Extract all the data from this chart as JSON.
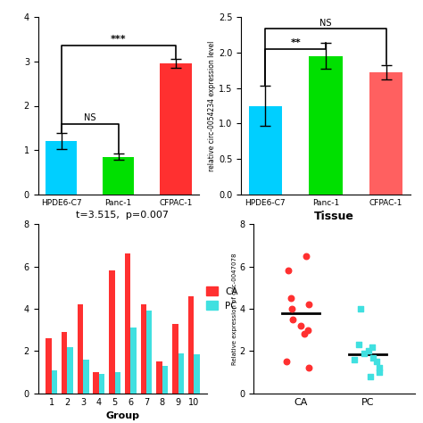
{
  "panel_tl": {
    "categories": [
      "HPDE6-C7",
      "Panc-1",
      "CFPAC-1"
    ],
    "values": [
      1.2,
      0.85,
      2.95
    ],
    "errors": [
      0.18,
      0.07,
      0.1
    ],
    "colors": [
      "#00CFFF",
      "#00E000",
      "#FF3030"
    ],
    "ylim": [
      0,
      4
    ],
    "yticks": [
      0,
      1,
      2,
      3,
      4
    ]
  },
  "panel_tr": {
    "categories": [
      "HPDE6-C7",
      "Panc-1",
      "CFPAC-1"
    ],
    "values": [
      1.25,
      1.95,
      1.72
    ],
    "errors": [
      0.28,
      0.18,
      0.1
    ],
    "colors": [
      "#00CFFF",
      "#00E000",
      "#FF6060"
    ],
    "ylabel": "relative circ-0054234 expression level",
    "ylim": [
      0,
      2.5
    ],
    "yticks": [
      0.0,
      0.5,
      1.0,
      1.5,
      2.0,
      2.5
    ]
  },
  "panel_bl": {
    "title": "t=3.515,  p=0.007",
    "groups": [
      1,
      2,
      3,
      4,
      5,
      6,
      7,
      8,
      9,
      10
    ],
    "ca_values": [
      2.6,
      2.9,
      4.2,
      1.0,
      5.8,
      6.6,
      4.2,
      1.5,
      3.3,
      4.6
    ],
    "pc_values": [
      1.1,
      2.2,
      1.6,
      0.9,
      1.0,
      3.1,
      3.9,
      1.3,
      1.9,
      1.85
    ],
    "ca_color": "#FF3030",
    "pc_color": "#40E0E0",
    "xlabel": "Group",
    "ylim": [
      0,
      8
    ],
    "yticks": [
      0,
      2,
      4,
      6,
      8
    ]
  },
  "panel_br": {
    "title": "Tissue",
    "ca_points": [
      1.2,
      1.5,
      2.8,
      3.0,
      3.2,
      3.5,
      4.0,
      4.2,
      4.5,
      5.8,
      6.5
    ],
    "pc_points": [
      0.8,
      1.0,
      1.2,
      1.5,
      1.6,
      1.7,
      1.9,
      2.0,
      2.2,
      2.3,
      4.0
    ],
    "ca_mean": 3.8,
    "pc_mean": 1.85,
    "ca_color": "#FF3030",
    "pc_color": "#40E0E0",
    "ylabel": "Relative expression of circ-0047078",
    "ylim": [
      0,
      8
    ],
    "yticks": [
      0,
      2,
      4,
      6,
      8
    ],
    "xticks": [
      "CA",
      "PC"
    ]
  },
  "legend_ca": "CA",
  "legend_pc": "PC",
  "ca_color": "#FF3030",
  "pc_color": "#40E0E0"
}
